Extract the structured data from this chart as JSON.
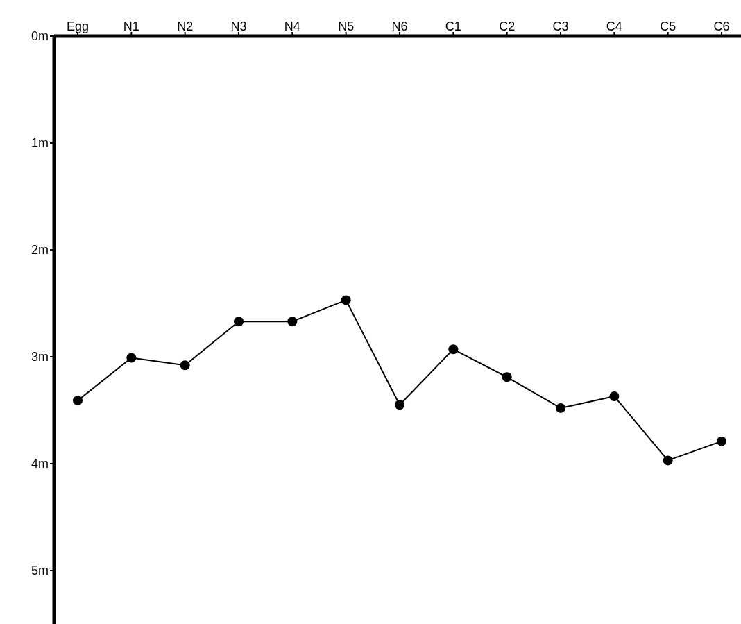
{
  "chart_data": {
    "type": "line",
    "categories": [
      "Egg",
      "N1",
      "N2",
      "N3",
      "N4",
      "N5",
      "N6",
      "C1",
      "C2",
      "C3",
      "C4",
      "C5",
      "C6"
    ],
    "values": [
      3.41,
      3.01,
      3.08,
      2.67,
      2.67,
      2.47,
      3.45,
      2.93,
      3.19,
      3.48,
      3.37,
      3.97,
      3.79
    ],
    "color": "#000000",
    "marker": "circle",
    "line_style": "solid",
    "grid": false,
    "legend": false,
    "ylim": [
      5.5,
      0
    ],
    "yticks": [
      {
        "value": 0,
        "label": "0m"
      },
      {
        "value": 1,
        "label": "1m"
      },
      {
        "value": 2,
        "label": "2m"
      },
      {
        "value": 3,
        "label": "3m"
      },
      {
        "value": 4,
        "label": "4m"
      },
      {
        "value": 5,
        "label": "5m"
      }
    ]
  }
}
